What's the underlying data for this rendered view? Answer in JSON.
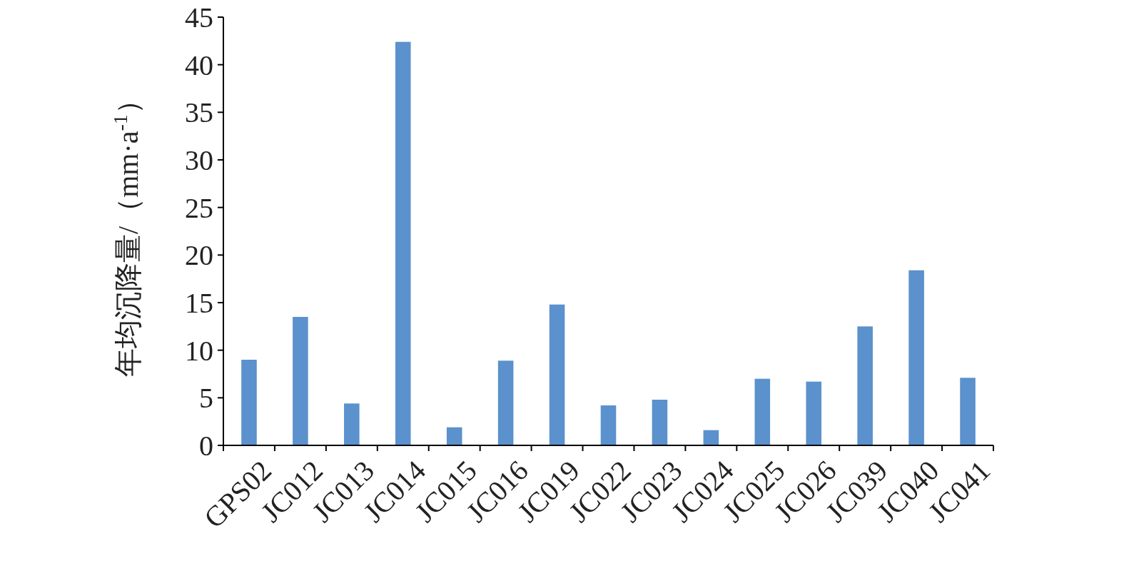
{
  "chart_data": {
    "type": "bar",
    "ylabel": "年均沉降量/（mm·a$^{-1}$）",
    "categories": [
      "GPS02",
      "JC012",
      "JC013",
      "JC014",
      "JC015",
      "JC016",
      "JC019",
      "JC022",
      "JC023",
      "JC024",
      "JC025",
      "JC026",
      "JC039",
      "JC040",
      "JC041"
    ],
    "values": [
      9.0,
      13.5,
      4.4,
      42.4,
      1.9,
      8.9,
      14.8,
      4.2,
      4.8,
      1.6,
      7.0,
      6.7,
      12.5,
      18.4,
      7.1
    ],
    "color": "#5b91cc",
    "ylim": [
      0,
      45
    ],
    "yticks": [
      0,
      5,
      10,
      15,
      20,
      25,
      30,
      35,
      40,
      45
    ],
    "grid": false
  }
}
